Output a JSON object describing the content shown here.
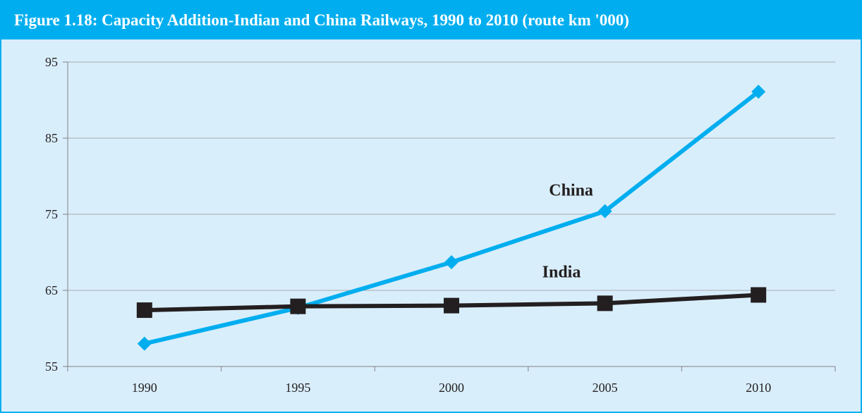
{
  "chart_data": {
    "type": "line",
    "title": "Figure 1.18:  Capacity Addition-Indian and China Railways, 1990 to 2010  (route km '000)",
    "xlabel": "",
    "ylabel": "",
    "categories": [
      "1990",
      "1995",
      "2000",
      "2005",
      "2010"
    ],
    "yticks": [
      "55",
      "65",
      "75",
      "85",
      "95"
    ],
    "ylim": [
      55,
      95
    ],
    "grid": true,
    "legend": "none",
    "series": [
      {
        "name": "China",
        "values": [
          58.0,
          62.7,
          68.7,
          75.4,
          91.1
        ],
        "color": "#00aeef",
        "marker": "diamond"
      },
      {
        "name": "India",
        "values": [
          62.4,
          62.9,
          63.0,
          63.3,
          64.4
        ],
        "color": "#231f20",
        "marker": "square"
      }
    ],
    "annotations": [
      {
        "text": "China",
        "series": "China"
      },
      {
        "text": "India",
        "series": "India"
      }
    ]
  }
}
